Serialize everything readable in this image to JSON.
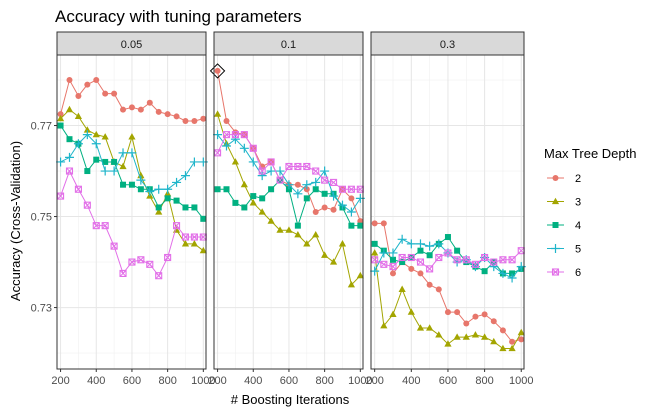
{
  "chart_data": {
    "type": "line",
    "title": "Accuracy with tuning parameters",
    "xlabel": "# Boosting Iterations",
    "ylabel": "Accuracy (Cross-Validation)",
    "xlim": [
      180,
      1015
    ],
    "ylim": [
      0.7165,
      0.7855
    ],
    "x_ticks": [
      200,
      400,
      600,
      800,
      1000
    ],
    "x_tick_labels": [
      "200",
      "400",
      "600",
      "800",
      "1000"
    ],
    "y_ticks": [
      0.73,
      0.75,
      0.77
    ],
    "y_tick_labels": [
      "0.73",
      "0.75",
      "0.77"
    ],
    "grid": true,
    "legend_title": "Max Tree Depth",
    "legend_position": "right",
    "x": [
      200,
      250,
      300,
      350,
      400,
      450,
      500,
      550,
      600,
      650,
      700,
      750,
      800,
      850,
      900,
      950,
      1000
    ],
    "panels": [
      {
        "label": "0.05",
        "series": [
          {
            "name": "2",
            "values": [
              0.7725,
              0.78,
              0.7765,
              0.779,
              0.78,
              0.777,
              0.777,
              0.7735,
              0.774,
              0.7735,
              0.775,
              0.773,
              0.7725,
              0.772,
              0.771,
              0.771,
              0.7715
            ]
          },
          {
            "name": "3",
            "values": [
              0.7715,
              0.7735,
              0.772,
              0.769,
              0.768,
              0.7675,
              0.762,
              0.761,
              0.7675,
              0.759,
              0.7545,
              0.751,
              0.755,
              0.747,
              0.744,
              0.744,
              0.7425
            ]
          },
          {
            "name": "4",
            "values": [
              0.77,
              0.767,
              0.766,
              0.76,
              0.7625,
              0.762,
              0.762,
              0.757,
              0.757,
              0.756,
              0.756,
              0.752,
              0.754,
              0.7535,
              0.752,
              0.752,
              0.7495
            ]
          },
          {
            "name": "5",
            "values": [
              0.762,
              0.763,
              0.766,
              0.768,
              0.766,
              0.76,
              0.76,
              0.764,
              0.764,
              0.758,
              0.7555,
              0.756,
              0.756,
              0.7575,
              0.759,
              0.762,
              0.762
            ]
          },
          {
            "name": "6",
            "values": [
              0.7545,
              0.76,
              0.756,
              0.7525,
              0.748,
              0.748,
              0.7435,
              0.7375,
              0.74,
              0.7405,
              0.7395,
              0.737,
              0.741,
              0.748,
              0.7455,
              0.7455,
              0.7455
            ]
          }
        ]
      },
      {
        "label": "0.1",
        "series": [
          {
            "name": "2",
            "values": [
              0.782,
              0.771,
              0.7685,
              0.768,
              0.765,
              0.761,
              0.762,
              0.758,
              0.757,
              0.757,
              0.756,
              0.751,
              0.752,
              0.7515,
              0.756,
              0.754,
              0.749
            ]
          },
          {
            "name": "3",
            "values": [
              0.7725,
              0.766,
              0.762,
              0.757,
              0.753,
              0.751,
              0.749,
              0.747,
              0.747,
              0.746,
              0.744,
              0.746,
              0.7415,
              0.74,
              0.744,
              0.735,
              0.737
            ]
          },
          {
            "name": "4",
            "values": [
              0.756,
              0.756,
              0.753,
              0.752,
              0.7545,
              0.754,
              0.756,
              0.758,
              0.756,
              0.748,
              0.754,
              0.756,
              0.755,
              0.755,
              0.752,
              0.748,
              0.748
            ]
          },
          {
            "name": "5",
            "values": [
              0.768,
              0.7655,
              0.767,
              0.765,
              0.762,
              0.759,
              0.76,
              0.76,
              0.757,
              0.755,
              0.757,
              0.7575,
              0.76,
              0.7545,
              0.7525,
              0.751,
              0.754
            ]
          },
          {
            "name": "6",
            "values": [
              0.764,
              0.768,
              0.768,
              0.768,
              0.765,
              0.76,
              0.762,
              0.758,
              0.761,
              0.761,
              0.761,
              0.76,
              0.758,
              0.7575,
              0.756,
              0.756,
              0.756
            ]
          }
        ]
      },
      {
        "label": "0.3",
        "series": [
          {
            "name": "2",
            "values": [
              0.7485,
              0.7485,
              0.7375,
              0.74,
              0.7385,
              0.7375,
              0.735,
              0.734,
              0.729,
              0.729,
              0.7265,
              0.728,
              0.7285,
              0.727,
              0.725,
              0.7225,
              0.723
            ]
          },
          {
            "name": "3",
            "values": [
              0.742,
              0.726,
              0.7285,
              0.734,
              0.729,
              0.7255,
              0.7255,
              0.724,
              0.722,
              0.7235,
              0.7235,
              0.724,
              0.7235,
              0.7225,
              0.721,
              0.721,
              0.7245
            ]
          },
          {
            "name": "4",
            "values": [
              0.744,
              0.7425,
              0.7405,
              0.74,
              0.741,
              0.7425,
              0.7415,
              0.744,
              0.7455,
              0.7425,
              0.74,
              0.739,
              0.738,
              0.74,
              0.7375,
              0.7375,
              0.7385
            ]
          },
          {
            "name": "5",
            "values": [
              0.738,
              0.742,
              0.742,
              0.745,
              0.744,
              0.744,
              0.7435,
              0.744,
              0.742,
              0.74,
              0.7405,
              0.739,
              0.741,
              0.739,
              0.7375,
              0.7365,
              0.739
            ]
          },
          {
            "name": "6",
            "values": [
              0.7405,
              0.7395,
              0.739,
              0.741,
              0.741,
              0.74,
              0.7385,
              0.741,
              0.742,
              0.7405,
              0.7405,
              0.7395,
              0.741,
              0.74,
              0.7405,
              0.7405,
              0.7425
            ]
          }
        ]
      }
    ],
    "series_styles": [
      {
        "name": "2",
        "color": "#E7766B",
        "marker": "circle"
      },
      {
        "name": "3",
        "color": "#A3A500",
        "marker": "triangle"
      },
      {
        "name": "4",
        "color": "#00B081",
        "marker": "square"
      },
      {
        "name": "5",
        "color": "#1FB5CA",
        "marker": "plus"
      },
      {
        "name": "6",
        "color": "#E26FE8",
        "marker": "square-cross"
      }
    ],
    "annotation": {
      "panel": "0.1",
      "x": 200,
      "y": 0.782,
      "marker": "diamond"
    }
  }
}
